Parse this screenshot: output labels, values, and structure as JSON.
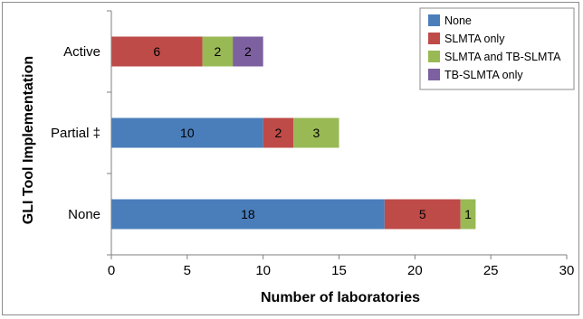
{
  "chart_data": {
    "type": "bar",
    "orientation": "horizontal",
    "stacked": true,
    "categories": [
      "Active",
      "Partial ‡",
      "None"
    ],
    "series": [
      {
        "name": "None",
        "color": "#4a7ebb",
        "values": [
          0,
          10,
          18
        ]
      },
      {
        "name": "SLMTA only",
        "color": "#be4b48",
        "values": [
          6,
          2,
          5
        ]
      },
      {
        "name": "SLMTA and TB-SLMTA",
        "color": "#98b954",
        "values": [
          2,
          3,
          1
        ]
      },
      {
        "name": "TB-SLMTA only",
        "color": "#7d60a0",
        "values": [
          2,
          0,
          0
        ]
      }
    ],
    "xlabel": "Number of laboratories",
    "ylabel": "GLI Tool Implementation",
    "xlim": [
      0,
      30
    ],
    "xticks": [
      0,
      5,
      10,
      15,
      20,
      25,
      30
    ],
    "grid": false,
    "legend_position": "top-right"
  }
}
